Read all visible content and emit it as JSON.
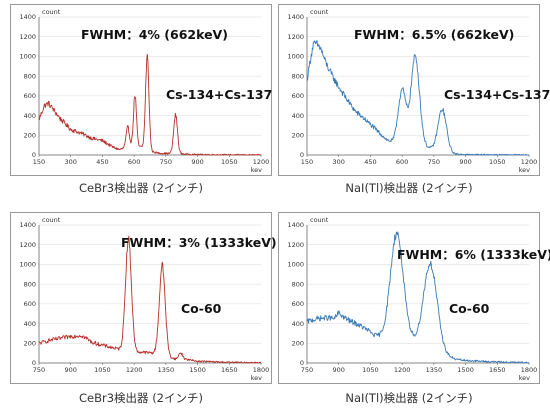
{
  "colors": {
    "cebr3": "#b5302a",
    "nai": "#3a7ab8",
    "axis": "#666666",
    "grid": "#d8d8d8"
  },
  "chart_data": [
    {
      "type": "line",
      "detector": "cebr3",
      "ylabel_top": "count",
      "xlabel_unit": "kev",
      "annotations": [
        "FWHM：4% (662keV)",
        "Cs-134+Cs-137"
      ],
      "xlim": [
        150,
        1200
      ],
      "ylim": [
        0,
        1400
      ],
      "xticks": [
        150,
        300,
        450,
        600,
        750,
        900,
        1050,
        1200
      ],
      "yticks": [
        0,
        200,
        400,
        600,
        800,
        1000,
        1200,
        1400
      ],
      "caption": "CeBr3検出器 (2インチ)",
      "continuum": [
        [
          150,
          360
        ],
        [
          175,
          500
        ],
        [
          195,
          525
        ],
        [
          215,
          470
        ],
        [
          250,
          370
        ],
        [
          300,
          260
        ],
        [
          350,
          220
        ],
        [
          400,
          170
        ],
        [
          450,
          145
        ],
        [
          500,
          80
        ],
        [
          530,
          55
        ],
        [
          555,
          70
        ],
        [
          575,
          80
        ],
        [
          590,
          95
        ],
        [
          620,
          85
        ],
        [
          650,
          75
        ],
        [
          690,
          30
        ],
        [
          720,
          18
        ],
        [
          760,
          16
        ],
        [
          800,
          14
        ],
        [
          850,
          8
        ],
        [
          900,
          5
        ],
        [
          1000,
          3
        ],
        [
          1100,
          2
        ],
        [
          1200,
          1
        ]
      ],
      "peaks": [
        [
          570,
          200,
          8
        ],
        [
          604,
          520,
          7
        ],
        [
          662,
          940,
          8
        ],
        [
          796,
          390,
          9
        ]
      ]
    },
    {
      "type": "line",
      "detector": "nai",
      "ylabel_top": "count",
      "xlabel_unit": "kev",
      "annotations": [
        "FWHM：6.5% (662keV)",
        "Cs-134+Cs-137"
      ],
      "xlim": [
        150,
        1200
      ],
      "ylim": [
        0,
        1400
      ],
      "xticks": [
        150,
        300,
        450,
        600,
        750,
        900,
        1050,
        1200
      ],
      "yticks": [
        0,
        200,
        400,
        600,
        800,
        1000,
        1200,
        1400
      ],
      "caption": "NaI(Tl)検出器 (2インチ)",
      "continuum": [
        [
          150,
          760
        ],
        [
          165,
          960
        ],
        [
          180,
          1120
        ],
        [
          195,
          1130
        ],
        [
          215,
          1080
        ],
        [
          240,
          930
        ],
        [
          270,
          800
        ],
        [
          300,
          690
        ],
        [
          340,
          560
        ],
        [
          380,
          440
        ],
        [
          420,
          370
        ],
        [
          460,
          290
        ],
        [
          500,
          210
        ],
        [
          530,
          150
        ],
        [
          560,
          130
        ],
        [
          580,
          150
        ],
        [
          700,
          90
        ],
        [
          740,
          60
        ],
        [
          820,
          15
        ],
        [
          860,
          8
        ],
        [
          900,
          5
        ],
        [
          1000,
          3
        ],
        [
          1100,
          2
        ],
        [
          1200,
          1
        ]
      ],
      "peaks": [
        [
          600,
          520,
          18
        ],
        [
          662,
          890,
          20
        ],
        [
          790,
          430,
          20
        ]
      ]
    },
    {
      "type": "line",
      "detector": "cebr3",
      "ylabel_top": "count",
      "xlabel_unit": "kev",
      "annotations": [
        "FWHM：3% (1333keV)",
        "Co-60"
      ],
      "xlim": [
        750,
        1800
      ],
      "ylim": [
        0,
        1400
      ],
      "xticks": [
        750,
        900,
        1050,
        1200,
        1350,
        1500,
        1650,
        1800
      ],
      "yticks": [
        0,
        200,
        400,
        600,
        800,
        1000,
        1200,
        1400
      ],
      "caption": "CeBr3検出器 (2インチ)",
      "continuum": [
        [
          750,
          200
        ],
        [
          800,
          230
        ],
        [
          850,
          250
        ],
        [
          900,
          270
        ],
        [
          950,
          280
        ],
        [
          975,
          250
        ],
        [
          1000,
          210
        ],
        [
          1050,
          180
        ],
        [
          1100,
          155
        ],
        [
          1140,
          130
        ],
        [
          1200,
          110
        ],
        [
          1240,
          110
        ],
        [
          1290,
          100
        ],
        [
          1330,
          70
        ],
        [
          1400,
          40
        ],
        [
          1420,
          110
        ],
        [
          1440,
          40
        ],
        [
          1500,
          18
        ],
        [
          1600,
          10
        ],
        [
          1700,
          6
        ],
        [
          1800,
          4
        ]
      ],
      "peaks": [
        [
          1173,
          1140,
          14
        ],
        [
          1333,
          920,
          14
        ]
      ]
    },
    {
      "type": "line",
      "detector": "nai",
      "ylabel_top": "count",
      "xlabel_unit": "kev",
      "annotations": [
        "FWHM：6% (1333keV)",
        "Co-60"
      ],
      "xlim": [
        750,
        1800
      ],
      "ylim": [
        0,
        1400
      ],
      "xticks": [
        750,
        900,
        1050,
        1200,
        1350,
        1500,
        1650,
        1800
      ],
      "yticks": [
        0,
        200,
        400,
        600,
        800,
        1000,
        1200,
        1400
      ],
      "caption": "NaI(Tl)検出器 (2インチ)",
      "continuum": [
        [
          750,
          420
        ],
        [
          800,
          450
        ],
        [
          850,
          460
        ],
        [
          880,
          450
        ],
        [
          900,
          510
        ],
        [
          920,
          470
        ],
        [
          950,
          430
        ],
        [
          1000,
          380
        ],
        [
          1040,
          330
        ],
        [
          1070,
          280
        ],
        [
          1100,
          260
        ],
        [
          1250,
          220
        ],
        [
          1300,
          150
        ],
        [
          1400,
          80
        ],
        [
          1450,
          40
        ],
        [
          1500,
          25
        ],
        [
          1600,
          15
        ],
        [
          1700,
          8
        ],
        [
          1800,
          5
        ]
      ],
      "peaks": [
        [
          1175,
          1080,
          30
        ],
        [
          1333,
          880,
          32
        ]
      ]
    }
  ]
}
